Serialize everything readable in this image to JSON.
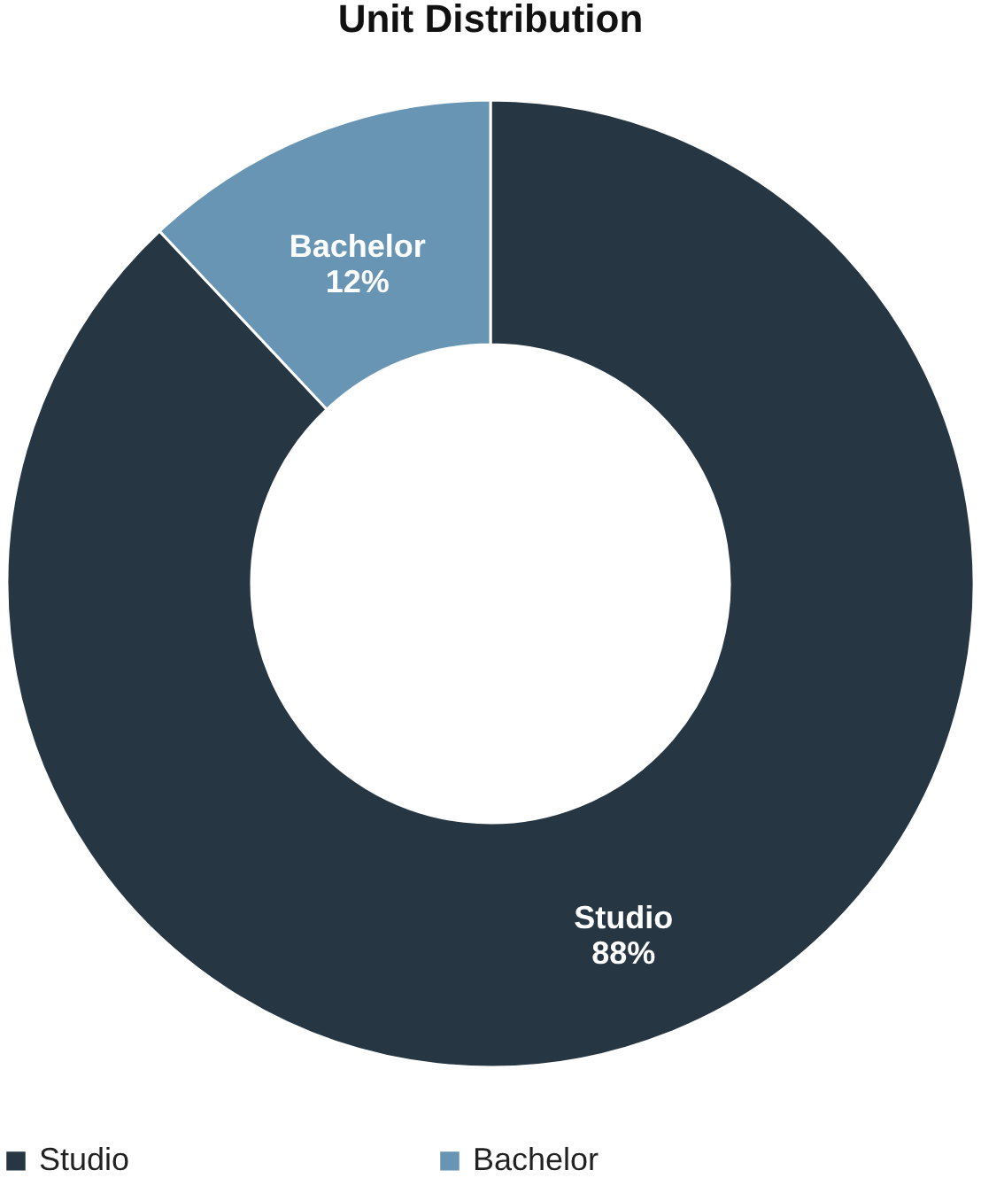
{
  "chart_data": {
    "type": "donut",
    "title": "Unit Distribution",
    "categories": [
      "Studio",
      "Bachelor"
    ],
    "values": [
      88,
      12
    ],
    "colors": [
      "#263642",
      "#6795b3"
    ],
    "value_labels": [
      "88%",
      "12%"
    ],
    "legend": "bottom"
  }
}
